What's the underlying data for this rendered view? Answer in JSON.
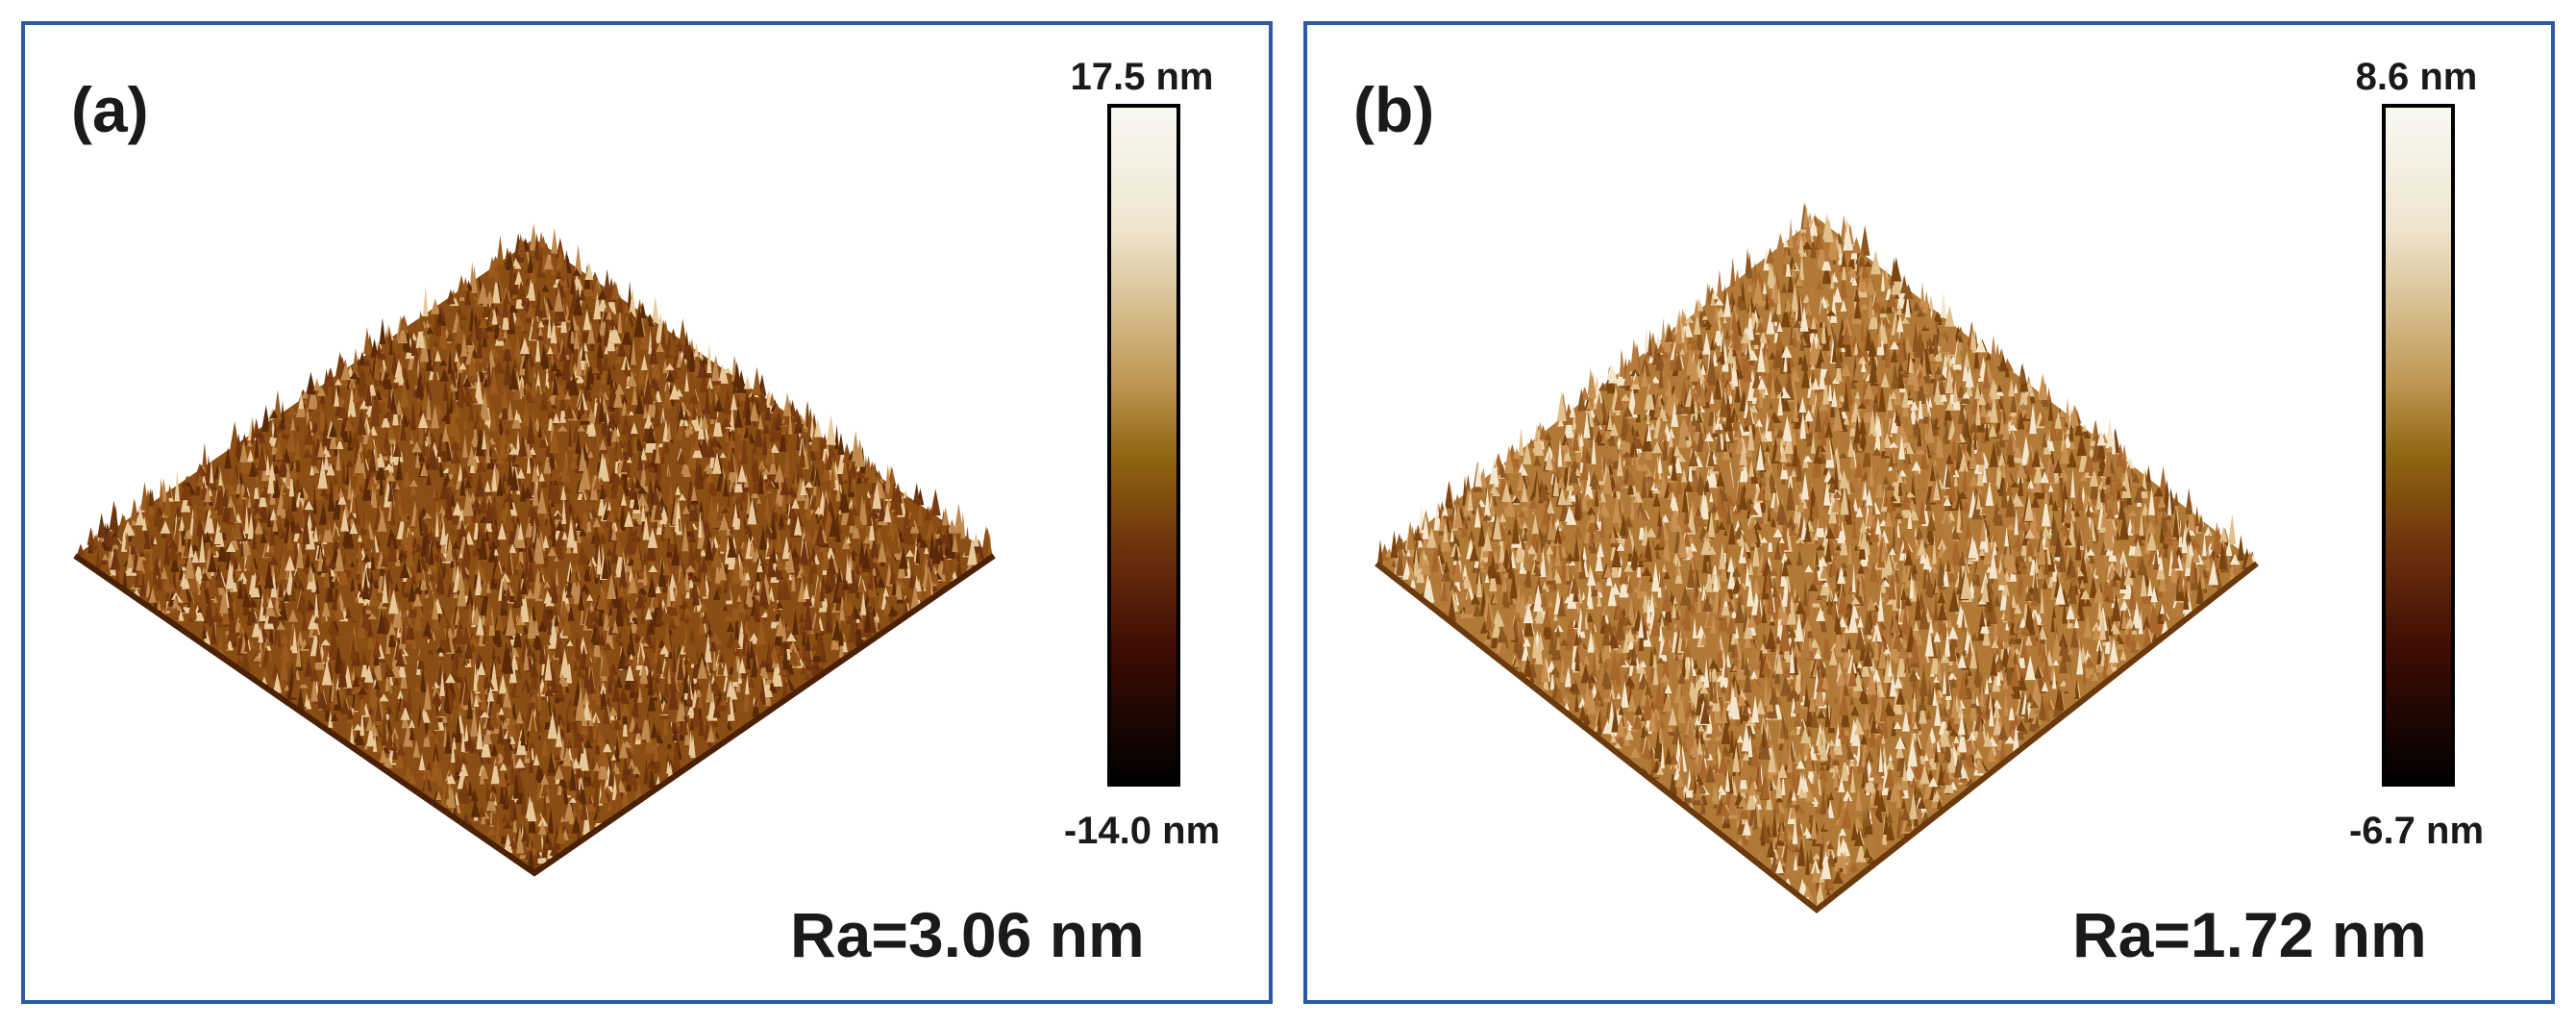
{
  "panels": [
    {
      "label": "(a)",
      "colorbar": {
        "max": "17.5 nm",
        "min": "-14.0 nm"
      },
      "roughness": "Ra=3.06 nm"
    },
    {
      "label": "(b)",
      "colorbar": {
        "max": "8.6 nm",
        "min": "-6.7 nm"
      },
      "roughness": "Ra=1.72 nm"
    }
  ],
  "colors": {
    "frame": "#2b5aa6",
    "surface_dark": "#5a2a08",
    "surface_mid": "#9a5a1c",
    "surface_light": "#e8c898"
  },
  "icons": [
    "afm-3d-surface-icon",
    "height-colorbar-icon"
  ]
}
